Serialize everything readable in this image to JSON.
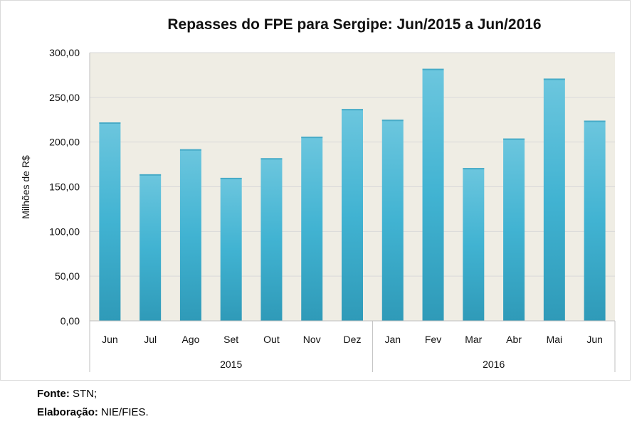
{
  "chart_data": {
    "type": "bar",
    "title": "Repasses do FPE para Sergipe: Jun/2015 a Jun/2016",
    "ylabel": "Milhões de R$",
    "xlabel": "",
    "ylim": [
      0,
      300
    ],
    "yticks": [
      "0,00",
      "50,00",
      "100,00",
      "150,00",
      "200,00",
      "250,00",
      "300,00"
    ],
    "categories": [
      "Jun",
      "Jul",
      "Ago",
      "Set",
      "Out",
      "Nov",
      "Dez",
      "Jan",
      "Fev",
      "Mar",
      "Abr",
      "Mai",
      "Jun"
    ],
    "values": [
      222,
      164,
      192,
      160,
      182,
      206,
      237,
      225,
      282,
      171,
      204,
      271,
      224
    ],
    "groups": [
      {
        "label": "2015",
        "count": 7
      },
      {
        "label": "2016",
        "count": 6
      }
    ],
    "grid": true,
    "colors": {
      "bar": "#41b3d2",
      "bar_light": "#6cc6de",
      "bar_dark": "#2f9ab8",
      "plot_bg": "#efede4",
      "grid": "#d9d9d9",
      "axis": "#bfbfbf"
    }
  },
  "footer": {
    "source_label": "Fonte:",
    "source_value": " STN;",
    "credit_label": "Elaboração:",
    "credit_value": " NIE/FIES."
  }
}
